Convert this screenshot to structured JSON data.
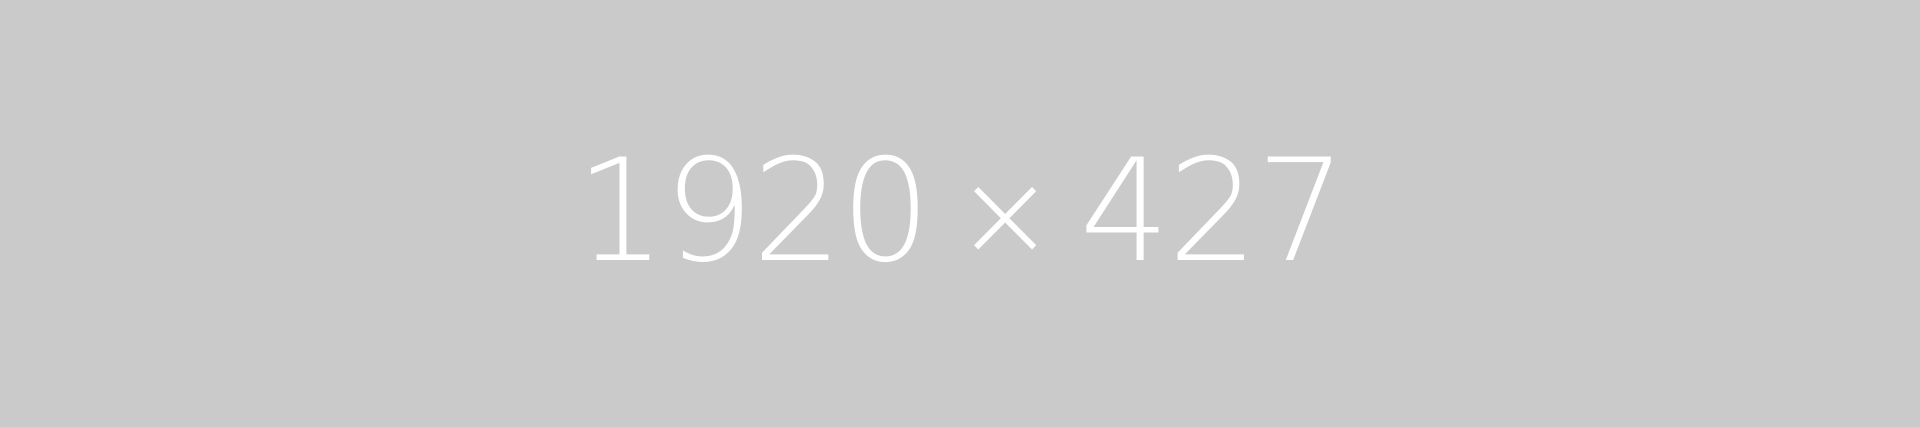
{
  "placeholder": {
    "width_text": "1920",
    "separator": "×",
    "height_text": "427",
    "background_color": "#cacaca",
    "text_color": "#ffffff"
  }
}
